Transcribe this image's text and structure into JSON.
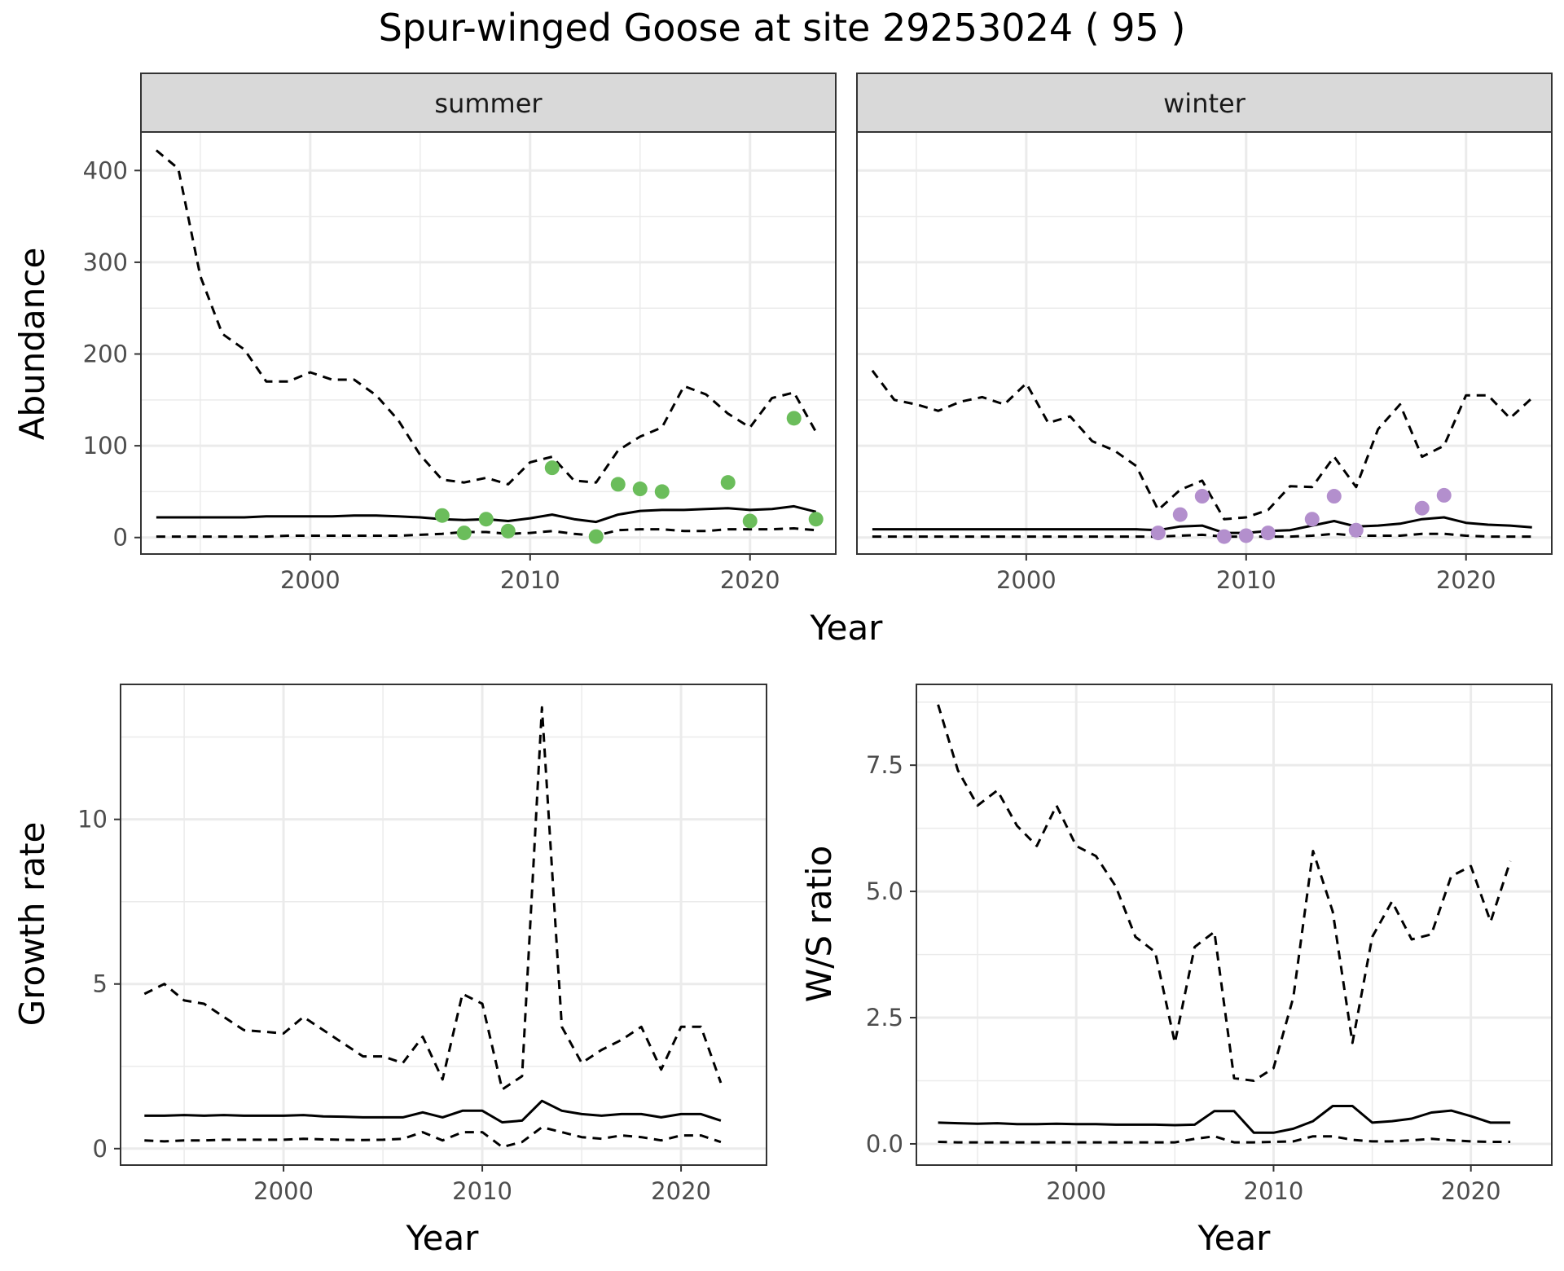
{
  "title": "Spur-winged Goose at site 29253024 ( 95 )",
  "chart_data": [
    {
      "type": "line",
      "facet": "summer",
      "xlabel": "Year",
      "ylabel": "Abundance",
      "xlim": [
        1992.3,
        2023.9
      ],
      "ylim": [
        -18,
        442
      ],
      "xticks": [
        2000,
        2010,
        2020
      ],
      "yticks": [
        0,
        100,
        200,
        300,
        400
      ],
      "grid": true,
      "x": [
        1993,
        1994,
        1995,
        1996,
        1997,
        1998,
        1999,
        2000,
        2001,
        2002,
        2003,
        2004,
        2005,
        2006,
        2007,
        2008,
        2009,
        2010,
        2011,
        2012,
        2013,
        2014,
        2015,
        2016,
        2017,
        2018,
        2019,
        2020,
        2021,
        2022,
        2023
      ],
      "series": [
        {
          "style": "solid",
          "values": [
            22,
            22,
            22,
            22,
            22,
            23,
            23,
            23,
            23,
            24,
            24,
            23,
            22,
            20,
            19,
            20,
            18,
            21,
            25,
            20,
            17,
            25,
            29,
            30,
            30,
            31,
            32,
            30,
            31,
            34,
            28
          ]
        },
        {
          "style": "dashed",
          "values": [
            422,
            402,
            285,
            222,
            205,
            170,
            170,
            180,
            172,
            172,
            155,
            128,
            90,
            63,
            60,
            65,
            58,
            82,
            88,
            62,
            60,
            95,
            110,
            120,
            165,
            156,
            135,
            120,
            152,
            158,
            115
          ]
        },
        {
          "style": "dashed",
          "values": [
            1,
            1,
            1,
            1,
            1,
            1,
            2,
            2,
            2,
            2,
            2,
            2,
            3,
            4,
            6,
            6,
            4,
            5,
            7,
            4,
            2,
            8,
            9,
            9,
            7,
            7,
            9,
            9,
            9,
            10,
            8
          ]
        }
      ],
      "points": {
        "color": "#6bbd5b",
        "x": [
          2006,
          2007,
          2008,
          2009,
          2011,
          2013,
          2014,
          2015,
          2016,
          2019,
          2020,
          2022,
          2023
        ],
        "y": [
          24,
          5,
          20,
          7,
          76,
          1,
          58,
          53,
          50,
          60,
          18,
          130,
          20
        ]
      }
    },
    {
      "type": "line",
      "facet": "winter",
      "xlabel": "Year",
      "ylabel": "",
      "xlim": [
        1992.3,
        2023.9
      ],
      "ylim": [
        -18,
        442
      ],
      "xticks": [
        2000,
        2010,
        2020
      ],
      "yticks": [],
      "grid": true,
      "x": [
        1993,
        1994,
        1995,
        1996,
        1997,
        1998,
        1999,
        2000,
        2001,
        2002,
        2003,
        2004,
        2005,
        2006,
        2007,
        2008,
        2009,
        2010,
        2011,
        2012,
        2013,
        2014,
        2015,
        2016,
        2017,
        2018,
        2019,
        2020,
        2021,
        2022,
        2023
      ],
      "series": [
        {
          "style": "solid",
          "values": [
            9,
            9,
            9,
            9,
            9,
            9,
            9,
            9,
            9,
            9,
            9,
            9,
            9,
            8,
            12,
            13,
            5,
            5,
            7,
            8,
            13,
            18,
            12,
            13,
            15,
            20,
            22,
            16,
            14,
            13,
            11
          ]
        },
        {
          "style": "dashed",
          "values": [
            182,
            150,
            145,
            138,
            148,
            153,
            145,
            168,
            125,
            132,
            105,
            95,
            78,
            30,
            52,
            62,
            20,
            22,
            30,
            56,
            55,
            88,
            55,
            118,
            145,
            88,
            100,
            155,
            155,
            130,
            152
          ]
        },
        {
          "style": "dashed",
          "values": [
            1,
            1,
            1,
            1,
            1,
            1,
            1,
            1,
            1,
            1,
            1,
            1,
            1,
            1,
            2,
            3,
            1,
            1,
            1,
            1,
            2,
            4,
            2,
            2,
            2,
            4,
            4,
            2,
            1,
            1,
            1
          ]
        }
      ],
      "points": {
        "color": "#b38fcd",
        "x": [
          2006,
          2007,
          2008,
          2009,
          2010,
          2011,
          2013,
          2014,
          2015,
          2018,
          2019
        ],
        "y": [
          5,
          25,
          45,
          1,
          2,
          5,
          20,
          45,
          8,
          32,
          46
        ]
      }
    },
    {
      "type": "line",
      "xlabel": "Year",
      "ylabel": "Growth rate",
      "xlim": [
        1991.8,
        2024.3
      ],
      "ylim": [
        -0.5,
        14.1
      ],
      "xticks": [
        2000,
        2010,
        2020
      ],
      "yticks": [
        0,
        5,
        10
      ],
      "grid": true,
      "x": [
        1993,
        1994,
        1995,
        1996,
        1997,
        1998,
        1999,
        2000,
        2001,
        2002,
        2003,
        2004,
        2005,
        2006,
        2007,
        2008,
        2009,
        2010,
        2011,
        2012,
        2013,
        2014,
        2015,
        2016,
        2017,
        2018,
        2019,
        2020,
        2021,
        2022
      ],
      "series": [
        {
          "style": "solid",
          "values": [
            1.0,
            1.0,
            1.02,
            1.0,
            1.02,
            1.0,
            1.0,
            1.0,
            1.02,
            0.98,
            0.97,
            0.95,
            0.95,
            0.95,
            1.1,
            0.95,
            1.15,
            1.15,
            0.8,
            0.85,
            1.45,
            1.15,
            1.05,
            1.0,
            1.05,
            1.05,
            0.95,
            1.05,
            1.05,
            0.85
          ]
        },
        {
          "style": "dashed",
          "values": [
            4.7,
            5.0,
            4.5,
            4.4,
            4.0,
            3.6,
            3.55,
            3.5,
            4.0,
            3.6,
            3.2,
            2.8,
            2.8,
            2.6,
            3.4,
            2.1,
            4.7,
            4.4,
            1.8,
            2.2,
            13.4,
            3.7,
            2.6,
            3.0,
            3.3,
            3.7,
            2.4,
            3.7,
            3.7,
            2.0
          ]
        },
        {
          "style": "dashed",
          "values": [
            0.25,
            0.22,
            0.25,
            0.25,
            0.27,
            0.27,
            0.27,
            0.27,
            0.3,
            0.28,
            0.27,
            0.26,
            0.27,
            0.3,
            0.5,
            0.25,
            0.5,
            0.5,
            0.05,
            0.2,
            0.65,
            0.5,
            0.35,
            0.3,
            0.4,
            0.35,
            0.25,
            0.4,
            0.4,
            0.2
          ]
        }
      ]
    },
    {
      "type": "line",
      "xlabel": "Year",
      "ylabel": "W/S ratio",
      "xlim": [
        1991.9,
        2024.1
      ],
      "ylim": [
        -0.42,
        9.1
      ],
      "xticks": [
        2000,
        2010,
        2020
      ],
      "yticks": [
        "0.0",
        "2.5",
        "5.0",
        "7.5"
      ],
      "grid": true,
      "x": [
        1993,
        1994,
        1995,
        1996,
        1997,
        1998,
        1999,
        2000,
        2001,
        2002,
        2003,
        2004,
        2005,
        2006,
        2007,
        2008,
        2009,
        2010,
        2011,
        2012,
        2013,
        2014,
        2015,
        2016,
        2017,
        2018,
        2019,
        2020,
        2021,
        2022
      ],
      "series": [
        {
          "style": "solid",
          "values": [
            0.42,
            0.41,
            0.4,
            0.41,
            0.39,
            0.39,
            0.4,
            0.39,
            0.39,
            0.38,
            0.38,
            0.38,
            0.37,
            0.38,
            0.65,
            0.65,
            0.22,
            0.22,
            0.3,
            0.45,
            0.75,
            0.75,
            0.42,
            0.45,
            0.5,
            0.62,
            0.66,
            0.55,
            0.42,
            0.42
          ]
        },
        {
          "style": "dashed",
          "values": [
            8.7,
            7.4,
            6.7,
            7.0,
            6.3,
            5.9,
            6.7,
            5.9,
            5.7,
            5.1,
            4.1,
            3.8,
            2.0,
            3.9,
            4.2,
            1.3,
            1.25,
            1.5,
            2.9,
            5.8,
            4.6,
            2.0,
            4.1,
            4.8,
            4.05,
            4.15,
            5.3,
            5.5,
            4.4,
            5.6
          ]
        },
        {
          "style": "dashed",
          "values": [
            0.04,
            0.03,
            0.03,
            0.03,
            0.03,
            0.03,
            0.03,
            0.03,
            0.03,
            0.03,
            0.03,
            0.03,
            0.03,
            0.1,
            0.15,
            0.03,
            0.03,
            0.04,
            0.05,
            0.15,
            0.15,
            0.08,
            0.05,
            0.05,
            0.07,
            0.1,
            0.07,
            0.05,
            0.04,
            0.04
          ]
        }
      ]
    }
  ]
}
